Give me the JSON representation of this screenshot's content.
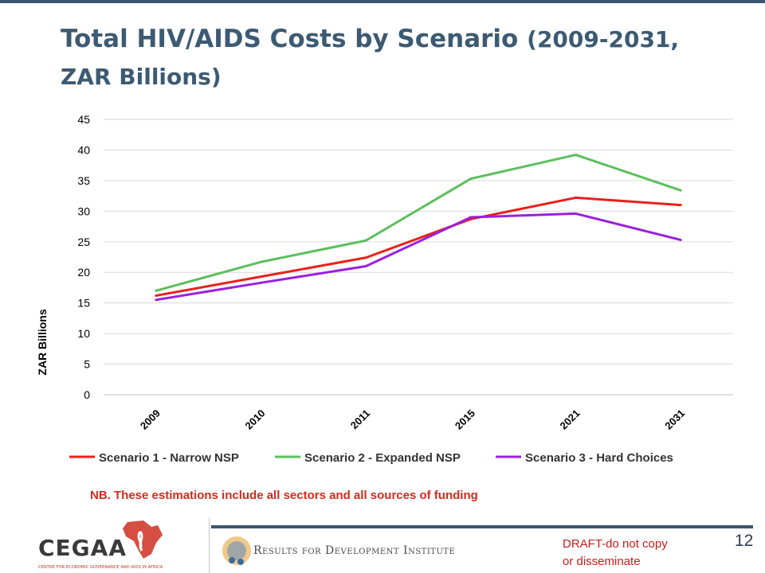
{
  "slide": {
    "title_main": "Total HIV/AIDS Costs by Scenario",
    "title_sub": "(2009-2031,",
    "title_line2": "ZAR Billions)",
    "note": "NB. These estimations include all sectors and all sources of funding",
    "draft_line1": "DRAFT-do not copy",
    "draft_line2": "or  disseminate",
    "page_number": "12",
    "footer_logo_left": "CEGAA",
    "footer_logo_left_tagline": "CENTRE FOR ECONOMIC GOVERNANCE AND AIDS IN AFRICA",
    "footer_logo_right": "Results for Development Institute"
  },
  "chart_data": {
    "type": "line",
    "title": "",
    "xlabel": "",
    "ylabel": "ZAR  Billions",
    "ylim": [
      0,
      45
    ],
    "yticks": [
      0,
      5,
      10,
      15,
      20,
      25,
      30,
      35,
      40,
      45
    ],
    "categories": [
      "2009",
      "2010",
      "2011",
      "2015",
      "2021",
      "2031"
    ],
    "grid": true,
    "legend_position": "bottom",
    "series": [
      {
        "name": "Scenario 1 - Narrow NSP",
        "color": "#e8211a",
        "values": [
          16.2,
          19.3,
          22.4,
          28.7,
          32.2,
          31.0
        ]
      },
      {
        "name": "Scenario 2 - Expanded NSP",
        "color": "#5cbf5c",
        "values": [
          17.0,
          21.7,
          25.2,
          35.3,
          39.2,
          33.4
        ]
      },
      {
        "name": "Scenario 3 - Hard Choices",
        "color": "#9b1fe0",
        "values": [
          15.5,
          18.3,
          21.0,
          29.0,
          29.6,
          25.3
        ]
      }
    ]
  },
  "colors": {
    "title": "#3d5a73",
    "accent_bar": "#3a5670",
    "note": "#d42a1c",
    "draft": "#cc1a1a"
  }
}
